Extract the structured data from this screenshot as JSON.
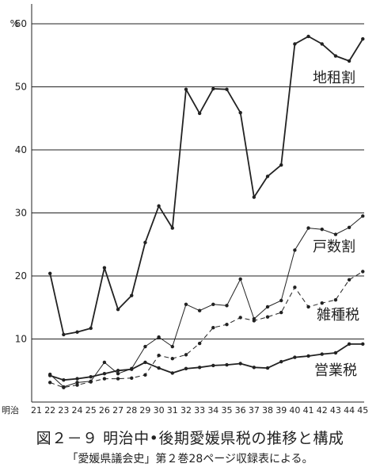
{
  "chart_data": {
    "type": "line",
    "y_unit_label": "%",
    "ylim": [
      0,
      60
    ],
    "y_ticks": [
      10,
      20,
      30,
      40,
      50,
      60
    ],
    "grid": "horizontal",
    "x_era_label": "明治",
    "x": [
      21,
      22,
      23,
      24,
      25,
      26,
      27,
      28,
      29,
      30,
      31,
      32,
      33,
      34,
      35,
      36,
      37,
      38,
      39,
      40,
      41,
      42,
      43,
      44,
      45
    ],
    "x_tick_labels": [
      "21",
      "22",
      "23",
      "24",
      "25",
      "26",
      "27",
      "28",
      "29",
      "30",
      "31",
      "32",
      "33",
      "34",
      "35",
      "36",
      "37",
      "38",
      "39",
      "40",
      "41",
      "42",
      "43",
      "44",
      "45"
    ],
    "series": [
      {
        "name": "地租割",
        "style": "thick-solid",
        "values": [
          null,
          20.4,
          10.7,
          11.1,
          11.7,
          21.3,
          14.7,
          16.9,
          25.3,
          31.1,
          27.6,
          49.6,
          45.8,
          49.7,
          49.6,
          45.9,
          32.5,
          35.8,
          37.6,
          56.8,
          58.0,
          56.8,
          54.9,
          54.1,
          57.6
        ]
      },
      {
        "name": "戸数割",
        "style": "thin-solid",
        "values": [
          null,
          4.4,
          2.4,
          3.1,
          3.3,
          6.3,
          4.5,
          5.3,
          8.8,
          10.3,
          8.8,
          15.5,
          14.5,
          15.5,
          15.3,
          19.5,
          13.2,
          15.1,
          16.1,
          24.1,
          27.6,
          27.4,
          26.6,
          27.7,
          29.5
        ]
      },
      {
        "name": "雑種税",
        "style": "dashed",
        "values": [
          null,
          3.1,
          2.3,
          2.7,
          3.2,
          3.7,
          3.7,
          3.8,
          4.3,
          7.4,
          6.9,
          7.5,
          9.3,
          11.8,
          12.3,
          13.4,
          12.9,
          13.5,
          14.2,
          18.2,
          15.1,
          15.7,
          16.2,
          19.4,
          20.7
        ]
      },
      {
        "name": "営業税",
        "style": "thick-solid",
        "values": [
          null,
          4.2,
          3.5,
          3.7,
          4.0,
          4.5,
          5.0,
          5.2,
          6.3,
          5.4,
          4.6,
          5.3,
          5.5,
          5.8,
          5.9,
          6.1,
          5.5,
          5.4,
          6.4,
          7.1,
          7.3,
          7.6,
          7.8,
          9.2,
          9.2
        ]
      }
    ]
  },
  "caption": {
    "title": "図２－９ 明治中•後期愛媛県税の推移と構成",
    "source": "「愛媛県議会史」第２巻28ページ収録表による。"
  },
  "colors": {
    "line": "#222222",
    "grid": "#222222",
    "background": "#ffffff"
  }
}
